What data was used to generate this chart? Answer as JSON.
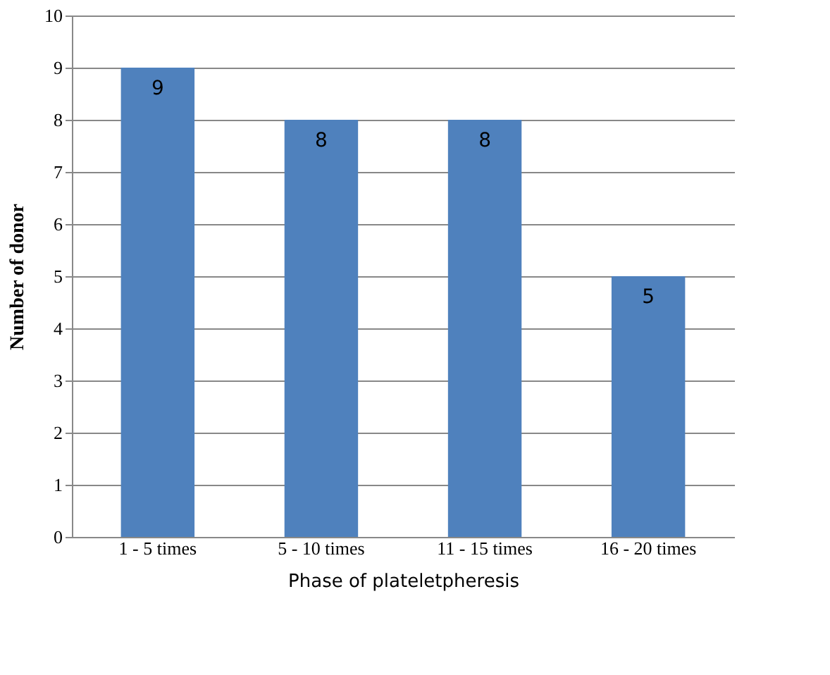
{
  "chart_data": {
    "type": "bar",
    "xlabel": "Phase of plateletpheresis",
    "ylabel": "Number of donor",
    "categories": [
      "1 - 5 times",
      "5 - 10 times",
      "11 - 15 times",
      "16 - 20 times"
    ],
    "values": [
      9,
      8,
      8,
      5
    ],
    "color": "#4f81bd",
    "ylim": [
      0,
      10
    ],
    "yticks": [
      0,
      1,
      2,
      3,
      4,
      5,
      6,
      7,
      8,
      9,
      10
    ],
    "grid": "y",
    "data_labels": true
  }
}
